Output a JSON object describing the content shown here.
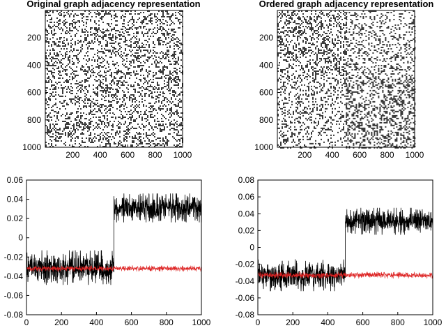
{
  "chart_data": [
    {
      "type": "heatmap",
      "title": "Original graph adjacency representation",
      "xlabel": "",
      "ylabel": "",
      "xlim": [
        1,
        1000
      ],
      "ylim": [
        1,
        1000
      ],
      "xticks": [
        200,
        400,
        600,
        800,
        1000
      ],
      "yticks": [
        200,
        400,
        600,
        800,
        1000
      ],
      "y_inverted": true,
      "density_blocks": [
        {
          "rows": [
            1,
            1000
          ],
          "cols": [
            1,
            1000
          ],
          "density": 0.5
        }
      ],
      "colors": {
        "edge": "#000000",
        "background": "#ffffff"
      }
    },
    {
      "type": "heatmap",
      "title": "Ordered graph adjacency representation",
      "xlabel": "",
      "ylabel": "",
      "xlim": [
        1,
        1000
      ],
      "ylim": [
        1,
        1000
      ],
      "xticks": [
        200,
        400,
        600,
        800,
        1000
      ],
      "yticks": [
        200,
        400,
        600,
        800,
        1000
      ],
      "y_inverted": true,
      "density_blocks": [
        {
          "rows": [
            1,
            500
          ],
          "cols": [
            1,
            500
          ],
          "density": 0.6
        },
        {
          "rows": [
            1,
            500
          ],
          "cols": [
            500,
            1000
          ],
          "density": 0.4
        },
        {
          "rows": [
            500,
            1000
          ],
          "cols": [
            1,
            500
          ],
          "density": 0.4
        },
        {
          "rows": [
            500,
            1000
          ],
          "cols": [
            500,
            1000
          ],
          "density": 0.6
        }
      ],
      "colors": {
        "edge": "#000000",
        "background": "#ffffff"
      }
    },
    {
      "type": "line",
      "title": "",
      "xlabel": "",
      "ylabel": "",
      "xlim": [
        0,
        1000
      ],
      "ylim": [
        -0.08,
        0.06
      ],
      "xticks": [
        0,
        200,
        400,
        600,
        800,
        1000
      ],
      "yticks": [
        -0.08,
        -0.06,
        -0.04,
        -0.02,
        0,
        0.02,
        0.04,
        0.06
      ],
      "ytick_labels": [
        "-0.08",
        "-0.06",
        "-0.04",
        "-0.02",
        "0",
        "0.02",
        "0.04",
        "0.06"
      ],
      "series": [
        {
          "color": "#000000",
          "segments": [
            {
              "x": [
                1,
                500
              ],
              "mean": -0.031,
              "spread": 0.018
            },
            {
              "x": [
                500,
                1000
              ],
              "mean": 0.031,
              "spread": 0.015
            }
          ]
        },
        {
          "color": "#dd2222",
          "segments": [
            {
              "x": [
                1,
                500
              ],
              "mean": -0.032,
              "spread": 0.003
            },
            {
              "x": [
                500,
                1000
              ],
              "mean": -0.032,
              "spread": 0.003
            }
          ]
        }
      ]
    },
    {
      "type": "line",
      "title": "",
      "xlabel": "",
      "ylabel": "",
      "xlim": [
        0,
        1000
      ],
      "ylim": [
        -0.08,
        0.08
      ],
      "xticks": [
        0,
        200,
        400,
        600,
        800,
        1000
      ],
      "yticks": [
        -0.08,
        -0.06,
        -0.04,
        -0.02,
        0,
        0.02,
        0.04,
        0.06,
        0.08
      ],
      "ytick_labels": [
        "-0.08",
        "-0.06",
        "-0.04",
        "-0.02",
        "0",
        "0.02",
        "0.04",
        "0.06",
        "0.08"
      ],
      "series": [
        {
          "color": "#000000",
          "segments": [
            {
              "x": [
                1,
                500
              ],
              "mean": -0.033,
              "spread": 0.019
            },
            {
              "x": [
                500,
                1000
              ],
              "mean": 0.031,
              "spread": 0.016
            }
          ]
        },
        {
          "color": "#dd2222",
          "segments": [
            {
              "x": [
                1,
                500
              ],
              "mean": -0.033,
              "spread": 0.004
            },
            {
              "x": [
                500,
                1000
              ],
              "mean": -0.033,
              "spread": 0.004
            }
          ]
        }
      ]
    }
  ]
}
